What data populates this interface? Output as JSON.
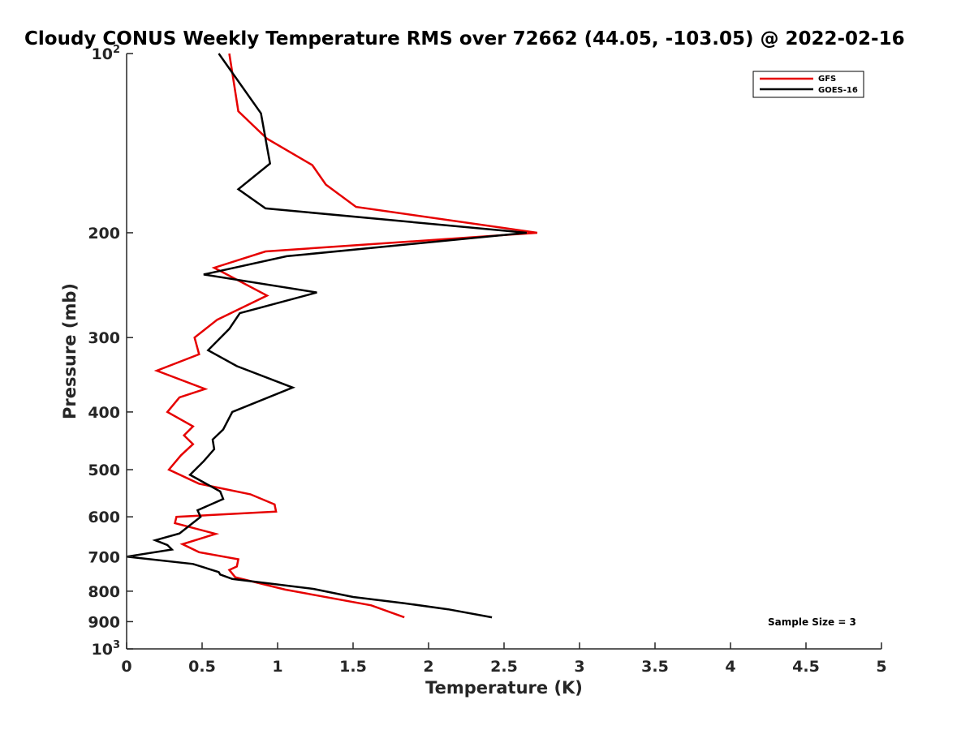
{
  "chart_data": {
    "type": "line",
    "title": "Cloudy CONUS Weekly Temperature RMS over 72662 (44.05, -103.05) @ 2022-02-16",
    "xlabel": "Temperature (K)",
    "ylabel": "Pressure (mb)",
    "xlim": [
      0,
      5
    ],
    "ylim": [
      100,
      1000
    ],
    "y_scale": "log",
    "y_reversed": true,
    "grid": false,
    "legend_position": "top-right",
    "x_ticks": [
      "0",
      "0.5",
      "1",
      "1.5",
      "2",
      "2.5",
      "3",
      "3.5",
      "4",
      "4.5",
      "5"
    ],
    "y_ticks": [
      {
        "value": 100,
        "base": "10",
        "exp": "2"
      },
      {
        "value": 200,
        "label": "200"
      },
      {
        "value": 300,
        "label": "300"
      },
      {
        "value": 400,
        "label": "400"
      },
      {
        "value": 500,
        "label": "500"
      },
      {
        "value": 600,
        "label": "600"
      },
      {
        "value": 700,
        "label": "700"
      },
      {
        "value": 800,
        "label": "800"
      },
      {
        "value": 900,
        "label": "900"
      },
      {
        "value": 1000,
        "base": "10",
        "exp": "3"
      }
    ],
    "series": [
      {
        "name": "GFS",
        "color": "#e60000",
        "points": [
          [
            0.68,
            100
          ],
          [
            0.74,
            125
          ],
          [
            0.93,
            139
          ],
          [
            1.23,
            154
          ],
          [
            1.32,
            166
          ],
          [
            1.52,
            181
          ],
          [
            2.72,
            200
          ],
          [
            0.92,
            215
          ],
          [
            0.58,
            229
          ],
          [
            0.93,
            255
          ],
          [
            0.6,
            280
          ],
          [
            0.45,
            300
          ],
          [
            0.48,
            320
          ],
          [
            0.2,
            341
          ],
          [
            0.52,
            366
          ],
          [
            0.35,
            378
          ],
          [
            0.27,
            400
          ],
          [
            0.44,
            423
          ],
          [
            0.38,
            438
          ],
          [
            0.44,
            453
          ],
          [
            0.36,
            473
          ],
          [
            0.28,
            500
          ],
          [
            0.48,
            528
          ],
          [
            0.82,
            550
          ],
          [
            0.98,
            572
          ],
          [
            0.99,
            588
          ],
          [
            0.33,
            600
          ],
          [
            0.32,
            615
          ],
          [
            0.59,
            641
          ],
          [
            0.37,
            667
          ],
          [
            0.48,
            688
          ],
          [
            0.74,
            707
          ],
          [
            0.73,
            727
          ],
          [
            0.68,
            737
          ],
          [
            0.72,
            758
          ],
          [
            1.05,
            795
          ],
          [
            1.62,
            845
          ],
          [
            1.84,
            885
          ]
        ]
      },
      {
        "name": "GOES-16",
        "color": "#000000",
        "points": [
          [
            0.61,
            100
          ],
          [
            0.89,
            126
          ],
          [
            0.95,
            153
          ],
          [
            0.74,
            169
          ],
          [
            0.92,
            182
          ],
          [
            2.65,
            200
          ],
          [
            1.06,
            219
          ],
          [
            0.51,
            235
          ],
          [
            1.26,
            252
          ],
          [
            0.75,
            273
          ],
          [
            0.68,
            290
          ],
          [
            0.54,
            315
          ],
          [
            0.73,
            335
          ],
          [
            1.1,
            364
          ],
          [
            0.7,
            400
          ],
          [
            0.64,
            428
          ],
          [
            0.57,
            445
          ],
          [
            0.58,
            462
          ],
          [
            0.51,
            484
          ],
          [
            0.42,
            510
          ],
          [
            0.62,
            544
          ],
          [
            0.64,
            560
          ],
          [
            0.47,
            585
          ],
          [
            0.49,
            600
          ],
          [
            0.35,
            640
          ],
          [
            0.19,
            657
          ],
          [
            0.27,
            669
          ],
          [
            0.3,
            681
          ],
          [
            0.0,
            700
          ],
          [
            0.44,
            720
          ],
          [
            0.61,
            743
          ],
          [
            0.62,
            750
          ],
          [
            0.7,
            763
          ],
          [
            1.24,
            793
          ],
          [
            1.5,
            818
          ],
          [
            1.84,
            838
          ],
          [
            2.13,
            858
          ],
          [
            2.42,
            885
          ]
        ]
      }
    ],
    "annotation": "Sample Size = 3"
  }
}
